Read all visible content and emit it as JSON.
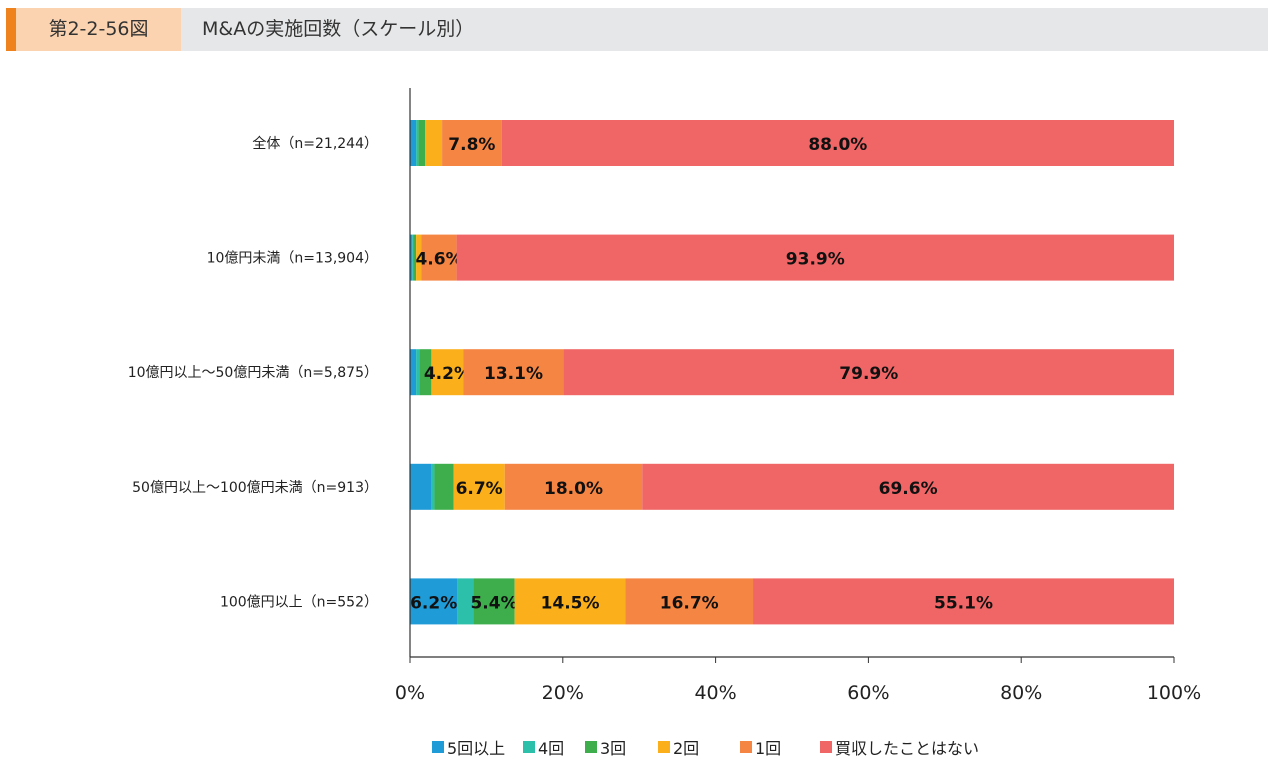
{
  "header": {
    "figure_number": "第2-2-56図",
    "title": "M&Aの実施回数（スケール別）"
  },
  "chart_data": {
    "type": "bar",
    "orientation": "horizontal",
    "stacked": true,
    "categories": [
      "全体（n=21,244）",
      "10億円未満（n=13,904）",
      "10億円以上～50億円未満（n=5,875）",
      "50億円以上～100億円未満（n=913）",
      "100億円以上（n=552）"
    ],
    "series": [
      {
        "name": "5回以上",
        "color": "#1f9bd7",
        "values": [
          0.8,
          0.3,
          0.8,
          2.8,
          6.2
        ]
      },
      {
        "name": "4回",
        "color": "#2cbfaa",
        "values": [
          0.3,
          0.1,
          0.4,
          0.4,
          2.1
        ]
      },
      {
        "name": "3回",
        "color": "#3eae4c",
        "values": [
          0.9,
          0.4,
          1.6,
          2.5,
          5.4
        ]
      },
      {
        "name": "2回",
        "color": "#fbb01b",
        "values": [
          2.2,
          0.7,
          4.2,
          6.7,
          14.5
        ]
      },
      {
        "name": "1回",
        "color": "#f58543",
        "values": [
          7.8,
          4.6,
          13.1,
          18.0,
          16.7
        ]
      },
      {
        "name": "買収したことはない",
        "color": "#f06565",
        "values": [
          88.0,
          93.9,
          79.9,
          69.6,
          55.1
        ]
      }
    ],
    "xlim": [
      0,
      100
    ],
    "xticks": [
      "0%",
      "20%",
      "40%",
      "60%",
      "80%",
      "100%"
    ],
    "grid": false,
    "legend_position": "bottom"
  }
}
